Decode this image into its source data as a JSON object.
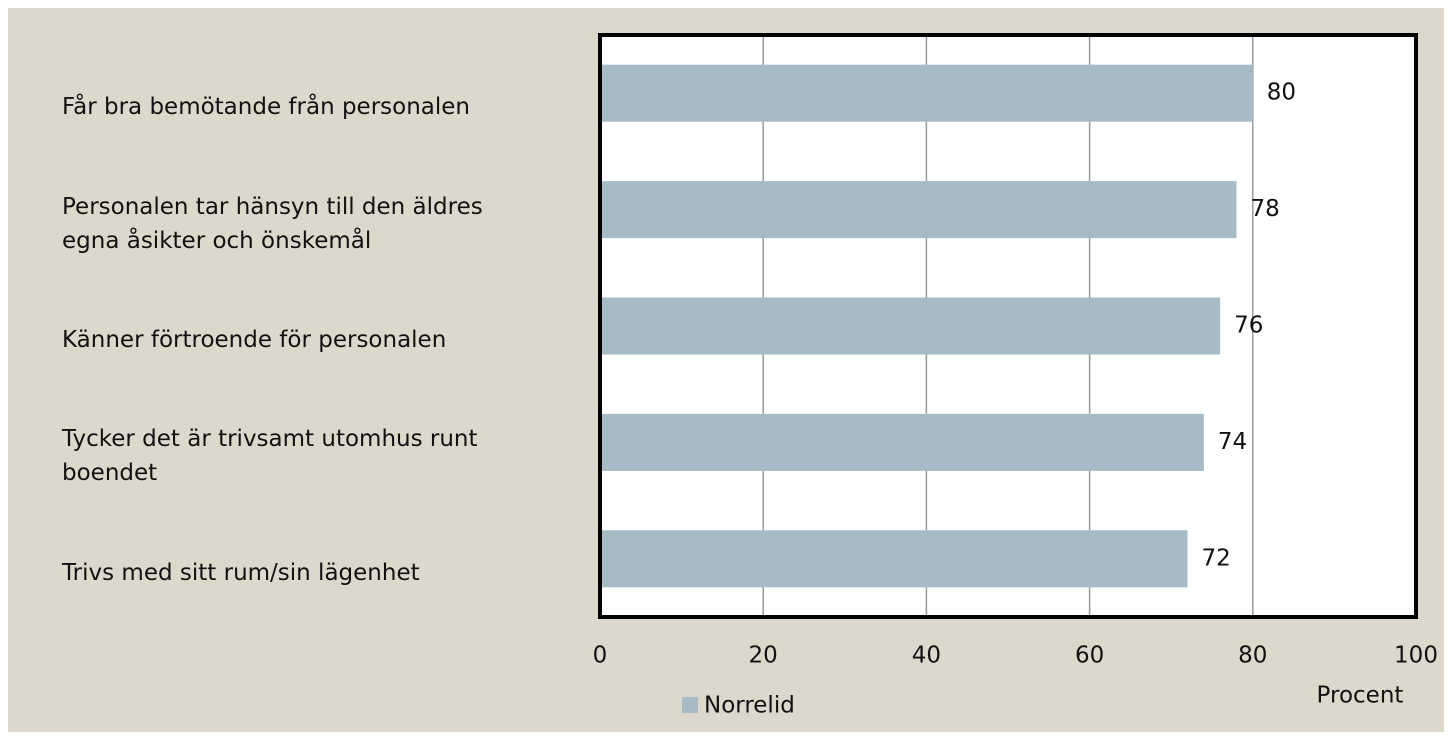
{
  "chart_data": {
    "type": "bar",
    "orientation": "horizontal",
    "categories": [
      "Får bra bemötande från personalen",
      "Personalen tar hänsyn till den äldres egna åsikter och önskemål",
      "Känner förtroende för personalen",
      "Tycker det är trivsamt utomhus runt boendet",
      "Trivs med sitt rum/sin lägenhet"
    ],
    "series": [
      {
        "name": "Norrelid",
        "color": "#a7bbc7",
        "values": [
          80,
          78,
          76,
          74,
          72
        ]
      }
    ],
    "xlabel": "Procent",
    "xlim": [
      0,
      100
    ],
    "xticks": [
      0,
      20,
      40,
      60,
      80,
      100
    ],
    "grid": true,
    "legend": "bottom"
  }
}
